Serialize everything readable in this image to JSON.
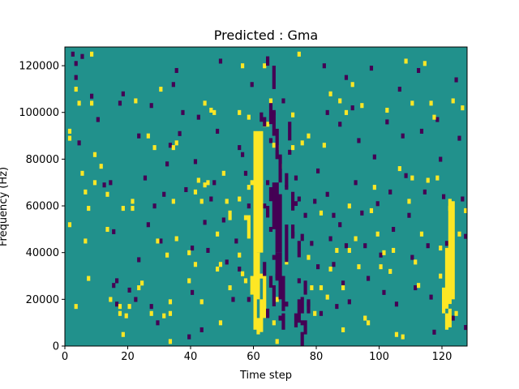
{
  "chart_data": {
    "type": "heatmap",
    "title": "Predicted : Gma",
    "xlabel": "Time step",
    "ylabel": "Frequency (Hz)",
    "xlim": [
      0,
      128
    ],
    "ylim": [
      0,
      128000
    ],
    "xticks": [
      0,
      20,
      40,
      60,
      80,
      100,
      120
    ],
    "yticks": [
      0,
      20000,
      40000,
      60000,
      80000,
      100000,
      120000
    ],
    "grid": false,
    "legend": "none",
    "colormap": {
      "low": "#440154",
      "mid": "#21918c",
      "high": "#fde725"
    },
    "background_value": "mid",
    "cells": {
      "high": [
        [
          1,
          89000
        ],
        [
          1,
          92000
        ],
        [
          8,
          125000
        ],
        [
          3,
          110000
        ],
        [
          4,
          104000
        ],
        [
          5,
          74000
        ],
        [
          7,
          59000
        ],
        [
          6,
          66000
        ],
        [
          1,
          52000
        ],
        [
          6,
          45000
        ],
        [
          7,
          29000
        ],
        [
          3,
          17000
        ],
        [
          9,
          82000
        ],
        [
          8,
          104000
        ],
        [
          11,
          77000
        ],
        [
          13,
          50000
        ],
        [
          9,
          70000
        ],
        [
          13,
          65000
        ],
        [
          14,
          20000
        ],
        [
          18,
          59000
        ],
        [
          17,
          14000
        ],
        [
          17,
          17000
        ],
        [
          18,
          5000
        ],
        [
          20,
          17000
        ],
        [
          19,
          13000
        ],
        [
          21,
          59000
        ],
        [
          21,
          62000
        ],
        [
          22,
          105000
        ],
        [
          23,
          25000
        ],
        [
          24,
          27000
        ],
        [
          26,
          90000
        ],
        [
          27,
          14000
        ],
        [
          28,
          85000
        ],
        [
          29,
          45000
        ],
        [
          30,
          110000
        ],
        [
          31,
          13000
        ],
        [
          32,
          39000
        ],
        [
          33,
          2000
        ],
        [
          33,
          14000
        ],
        [
          33,
          19000
        ],
        [
          34,
          85000
        ],
        [
          34,
          62000
        ],
        [
          35,
          87000
        ],
        [
          35,
          46000
        ],
        [
          39,
          28000
        ],
        [
          39,
          40000
        ],
        [
          41,
          35000
        ],
        [
          41,
          66000
        ],
        [
          42,
          71000
        ],
        [
          43,
          62000
        ],
        [
          44,
          69000
        ],
        [
          43,
          19000
        ],
        [
          44,
          104000
        ],
        [
          45,
          70000
        ],
        [
          46,
          101000
        ],
        [
          47,
          100000
        ],
        [
          48,
          48000
        ],
        [
          48,
          33000
        ],
        [
          49,
          35000
        ],
        [
          50,
          74000
        ],
        [
          49,
          10000
        ],
        [
          51,
          62000
        ],
        [
          52,
          57000
        ],
        [
          52,
          55000
        ],
        [
          52,
          25000
        ],
        [
          55,
          63000
        ],
        [
          55,
          39000
        ],
        [
          55,
          100000
        ],
        [
          56,
          120000
        ],
        [
          56,
          31000
        ],
        [
          57,
          55000
        ],
        [
          57,
          28000
        ],
        [
          58,
          98000
        ],
        [
          58,
          68000
        ],
        [
          59,
          70000
        ],
        [
          60,
          80000
        ],
        [
          60,
          50000
        ],
        [
          60,
          40000
        ],
        [
          62,
          30000
        ],
        [
          62,
          70000
        ],
        [
          63,
          95000
        ],
        [
          63,
          120000
        ],
        [
          64,
          95000
        ],
        [
          65,
          105000
        ],
        [
          66,
          86000
        ],
        [
          67,
          85000
        ],
        [
          68,
          77000
        ],
        [
          66,
          10000
        ],
        [
          67,
          20000
        ],
        [
          67,
          2000
        ],
        [
          70,
          36000
        ],
        [
          72,
          99000
        ],
        [
          72,
          85000
        ],
        [
          74,
          125000
        ],
        [
          75,
          87000
        ],
        [
          77,
          90000
        ],
        [
          77,
          38000
        ],
        [
          78,
          25000
        ],
        [
          79,
          14000
        ],
        [
          81,
          57000
        ],
        [
          81,
          25000
        ],
        [
          82,
          86000
        ],
        [
          83,
          21000
        ],
        [
          84,
          108000
        ],
        [
          84,
          33000
        ],
        [
          86,
          41000
        ],
        [
          87,
          105000
        ],
        [
          88,
          25000
        ],
        [
          88,
          7000
        ],
        [
          89,
          100000
        ],
        [
          90,
          60000
        ],
        [
          90,
          41000
        ],
        [
          91,
          112000
        ],
        [
          92,
          46000
        ],
        [
          93,
          34000
        ],
        [
          94,
          103000
        ],
        [
          95,
          12000
        ],
        [
          96,
          10000
        ],
        [
          97,
          58000
        ],
        [
          98,
          68000
        ],
        [
          99,
          48000
        ],
        [
          100,
          34000
        ],
        [
          101,
          40000
        ],
        [
          102,
          101000
        ],
        [
          103,
          32000
        ],
        [
          104,
          41000
        ],
        [
          105,
          5000
        ],
        [
          106,
          76000
        ],
        [
          107,
          4000
        ],
        [
          108,
          122000
        ],
        [
          109,
          62000
        ],
        [
          110,
          104000
        ],
        [
          110,
          72000
        ],
        [
          111,
          36000
        ],
        [
          112,
          26000
        ],
        [
          113,
          48000
        ],
        [
          114,
          121000
        ],
        [
          115,
          71000
        ],
        [
          116,
          104000
        ],
        [
          117,
          98000
        ],
        [
          118,
          72000
        ],
        [
          119,
          42000
        ],
        [
          119,
          30000
        ],
        [
          120,
          18000
        ],
        [
          120,
          24000
        ],
        [
          122,
          36000
        ],
        [
          122,
          59000
        ],
        [
          123,
          105000
        ],
        [
          124,
          14000
        ],
        [
          125,
          48000
        ],
        [
          126,
          102000
        ],
        [
          127,
          58000
        ]
      ],
      "low": [
        [
          2,
          125000
        ],
        [
          3,
          121000
        ],
        [
          3,
          115000
        ],
        [
          4,
          87000
        ],
        [
          5,
          124000
        ],
        [
          8,
          107000
        ],
        [
          10,
          97000
        ],
        [
          12,
          69000
        ],
        [
          14,
          70000
        ],
        [
          15,
          49000
        ],
        [
          15,
          26000
        ],
        [
          16,
          18000
        ],
        [
          16,
          28000
        ],
        [
          17,
          104000
        ],
        [
          18,
          108000
        ],
        [
          20,
          24000
        ],
        [
          22,
          20000
        ],
        [
          23,
          37000
        ],
        [
          23,
          90000
        ],
        [
          25,
          72000
        ],
        [
          26,
          52000
        ],
        [
          27,
          17000
        ],
        [
          27,
          103000
        ],
        [
          28,
          60000
        ],
        [
          29,
          10000
        ],
        [
          30,
          45000
        ],
        [
          31,
          65000
        ],
        [
          32,
          78000
        ],
        [
          33,
          86000
        ],
        [
          34,
          112000
        ],
        [
          35,
          118000
        ],
        [
          36,
          91000
        ],
        [
          37,
          100000
        ],
        [
          38,
          67000
        ],
        [
          39,
          4000
        ],
        [
          40,
          42000
        ],
        [
          40,
          23000
        ],
        [
          41,
          79000
        ],
        [
          42,
          98000
        ],
        [
          43,
          7000
        ],
        [
          44,
          53000
        ],
        [
          45,
          41000
        ],
        [
          46,
          63000
        ],
        [
          47,
          70000
        ],
        [
          48,
          92000
        ],
        [
          49,
          122000
        ],
        [
          50,
          54000
        ],
        [
          51,
          36000
        ],
        [
          53,
          20000
        ],
        [
          54,
          45000
        ],
        [
          55,
          85000
        ],
        [
          55,
          33000
        ],
        [
          56,
          82000
        ],
        [
          57,
          74000
        ],
        [
          58,
          60000
        ],
        [
          59,
          112000
        ],
        [
          58,
          20000
        ],
        [
          63,
          60000
        ],
        [
          64,
          70000
        ],
        [
          65,
          50000
        ],
        [
          65,
          88000
        ],
        [
          66,
          100000
        ],
        [
          66,
          38000
        ],
        [
          67,
          30000
        ],
        [
          68,
          22000
        ],
        [
          68,
          12000
        ],
        [
          69,
          105000
        ],
        [
          70,
          68000
        ],
        [
          70,
          18000
        ],
        [
          71,
          83000
        ],
        [
          72,
          48000
        ],
        [
          73,
          72000
        ],
        [
          74,
          63000
        ],
        [
          74,
          28000
        ],
        [
          75,
          10000
        ],
        [
          76,
          56000
        ],
        [
          77,
          18000
        ],
        [
          78,
          44000
        ],
        [
          79,
          62000
        ],
        [
          80,
          75000
        ],
        [
          80,
          34000
        ],
        [
          81,
          14000
        ],
        [
          82,
          120000
        ],
        [
          83,
          100000
        ],
        [
          83,
          65000
        ],
        [
          84,
          46000
        ],
        [
          85,
          56000
        ],
        [
          85,
          35000
        ],
        [
          86,
          17000
        ],
        [
          87,
          95000
        ],
        [
          87,
          52000
        ],
        [
          88,
          27000
        ],
        [
          89,
          115000
        ],
        [
          89,
          43000
        ],
        [
          90,
          19000
        ],
        [
          91,
          102000
        ],
        [
          92,
          70000
        ],
        [
          93,
          88000
        ],
        [
          94,
          57000
        ],
        [
          95,
          43000
        ],
        [
          96,
          29000
        ],
        [
          97,
          119000
        ],
        [
          98,
          81000
        ],
        [
          99,
          61000
        ],
        [
          100,
          39000
        ],
        [
          101,
          23000
        ],
        [
          102,
          96000
        ],
        [
          103,
          66000
        ],
        [
          104,
          50000
        ],
        [
          105,
          18000
        ],
        [
          106,
          110000
        ],
        [
          107,
          90000
        ],
        [
          108,
          73000
        ],
        [
          109,
          56000
        ],
        [
          110,
          38000
        ],
        [
          111,
          25000
        ],
        [
          112,
          118000
        ],
        [
          113,
          92000
        ],
        [
          114,
          66000
        ],
        [
          115,
          43000
        ],
        [
          116,
          21000
        ],
        [
          117,
          6000
        ],
        [
          118,
          97000
        ],
        [
          119,
          80000
        ],
        [
          120,
          64000
        ],
        [
          121,
          44000
        ],
        [
          122,
          27000
        ],
        [
          123,
          12000
        ],
        [
          124,
          114000
        ],
        [
          125,
          89000
        ],
        [
          126,
          63000
        ],
        [
          127,
          47000
        ],
        [
          127,
          8000
        ]
      ],
      "high_bands": [
        [
          60,
          40000,
          92000
        ],
        [
          61,
          40000,
          92000
        ],
        [
          62,
          40000,
          92000
        ],
        [
          60,
          7000,
          50000
        ],
        [
          61,
          20000,
          40000
        ],
        [
          62,
          6000,
          20000
        ],
        [
          63,
          12000,
          30000
        ],
        [
          60,
          11000,
          30000
        ],
        [
          61,
          5000,
          12000
        ],
        [
          59,
          22000,
          30000
        ],
        [
          58,
          46000,
          56000
        ],
        [
          121,
          16000,
          42000
        ],
        [
          122,
          18000,
          63000
        ],
        [
          123,
          20000,
          62000
        ],
        [
          120,
          14000,
          25000
        ],
        [
          122,
          8000,
          16000
        ],
        [
          121,
          7000,
          14000
        ]
      ],
      "low_bands": [
        [
          66,
          50000,
          70000
        ],
        [
          67,
          40000,
          70000
        ],
        [
          67,
          28000,
          40000
        ],
        [
          68,
          40000,
          65000
        ],
        [
          68,
          20000,
          40000
        ],
        [
          69,
          15000,
          30000
        ],
        [
          69,
          7000,
          14000
        ],
        [
          70,
          36000,
          52000
        ],
        [
          65,
          62000,
          68000
        ],
        [
          67,
          80000,
          93000
        ],
        [
          68,
          70000,
          82000
        ],
        [
          66,
          110000,
          120000
        ],
        [
          63,
          94000,
          98000
        ],
        [
          64,
          55000,
          60000
        ],
        [
          65,
          25000,
          30000
        ],
        [
          66,
          17000,
          26000
        ],
        [
          70,
          68000,
          74000
        ],
        [
          71,
          88000,
          96000
        ],
        [
          72,
          58000,
          66000
        ],
        [
          73,
          60000,
          62000
        ],
        [
          74,
          10000,
          20000
        ],
        [
          75,
          14000,
          21000
        ],
        [
          75,
          0,
          6000
        ],
        [
          76,
          22000,
          28000
        ],
        [
          64,
          120000,
          124000
        ],
        [
          64,
          12000,
          16000
        ],
        [
          63,
          30000,
          36000
        ],
        [
          62,
          96000,
          100000
        ],
        [
          65,
          95000,
          104000
        ],
        [
          66,
          90000,
          100000
        ],
        [
          72,
          46000,
          52000
        ],
        [
          73,
          8000,
          14000
        ],
        [
          74,
          38000,
          45000
        ],
        [
          75,
          45000,
          48000
        ],
        [
          76,
          5000,
          11000
        ],
        [
          77,
          14000,
          20000
        ]
      ]
    }
  }
}
